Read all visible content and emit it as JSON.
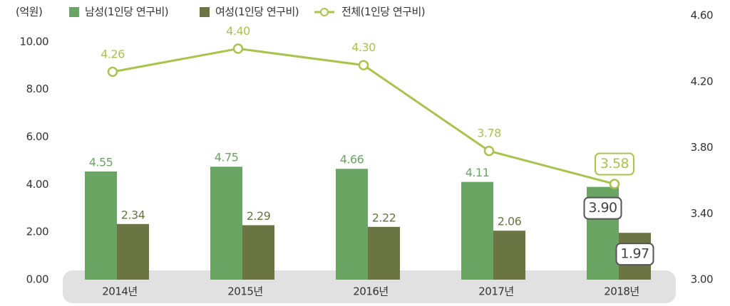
{
  "chart_data": {
    "type": "bar-line",
    "y_label": "(억원)",
    "categories": [
      "2014년",
      "2015년",
      "2016년",
      "2017년",
      "2018년"
    ],
    "series": [
      {
        "name": "남성(1인당 연구비)",
        "type": "bar",
        "color": "#6aa564",
        "values": [
          4.55,
          4.75,
          4.66,
          4.11,
          3.9
        ],
        "value_labels": [
          "4.55",
          "4.75",
          "4.66",
          "4.11",
          "3.90"
        ]
      },
      {
        "name": "여성(1인당 연구비)",
        "type": "bar",
        "color": "#6b7443",
        "values": [
          2.34,
          2.29,
          2.22,
          2.06,
          1.97
        ],
        "value_labels": [
          "2.34",
          "2.29",
          "2.22",
          "2.06",
          "1.97"
        ]
      },
      {
        "name": "전체(1인당 연구비)",
        "type": "line",
        "axis": "y2",
        "color": "#a8c34e",
        "values": [
          4.26,
          4.4,
          4.3,
          3.78,
          3.58
        ],
        "value_labels": [
          "4.26",
          "4.40",
          "4.30",
          "3.78",
          "3.58"
        ]
      }
    ],
    "ylim": [
      0,
      11.1
    ],
    "yticks": [
      {
        "value": 0,
        "label": "0.00"
      },
      {
        "value": 2,
        "label": "2.00"
      },
      {
        "value": 4,
        "label": "4.00"
      },
      {
        "value": 6,
        "label": "6.00"
      },
      {
        "value": 8,
        "label": "8.00"
      },
      {
        "value": 10,
        "label": "10.00"
      }
    ],
    "y2lim": [
      3.0,
      4.6
    ],
    "y2ticks": [
      {
        "value": 3.0,
        "label": "3.00"
      },
      {
        "value": 3.4,
        "label": "3.40"
      },
      {
        "value": 3.8,
        "label": "3.80"
      },
      {
        "value": 4.2,
        "label": "4.20"
      },
      {
        "value": 4.6,
        "label": "4.60"
      }
    ]
  }
}
